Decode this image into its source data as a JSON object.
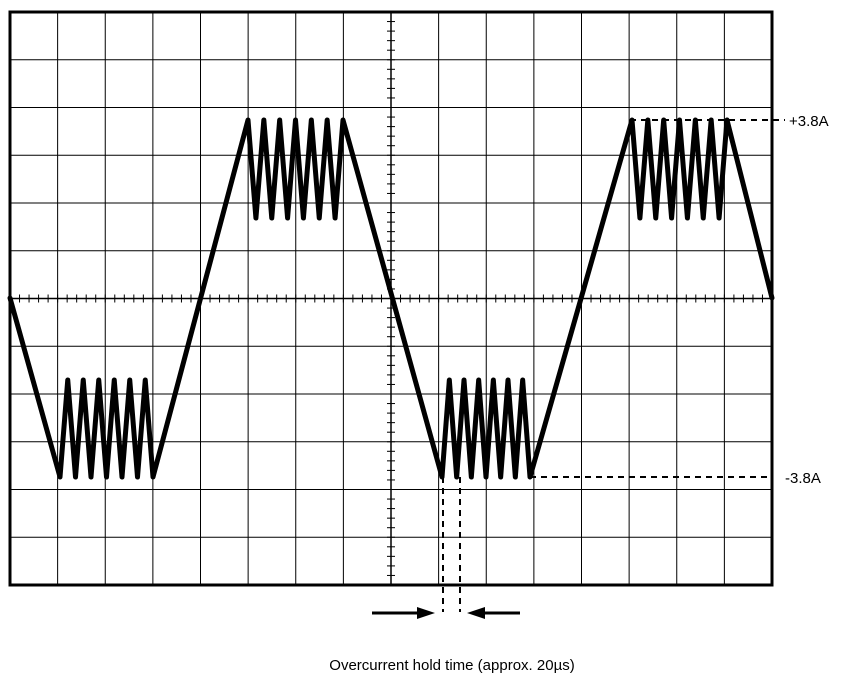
{
  "scope": {
    "divisions_x": 16,
    "divisions_y": 12,
    "minor_ticks_per_division": 5,
    "grid": true,
    "background": "#ffffff",
    "trace_color": "#000000",
    "grid_color": "#000000"
  },
  "waveform": {
    "shape": "trapezoid with chopped current peaks",
    "cycles_shown": 2,
    "positive_limit_label": "+3.8A",
    "negative_limit_label": "-3.8A",
    "chop_pulses_per_peak": 6
  },
  "annotation": {
    "hold_time_label": "Overcurrent hold time (approx. 20µs)"
  }
}
